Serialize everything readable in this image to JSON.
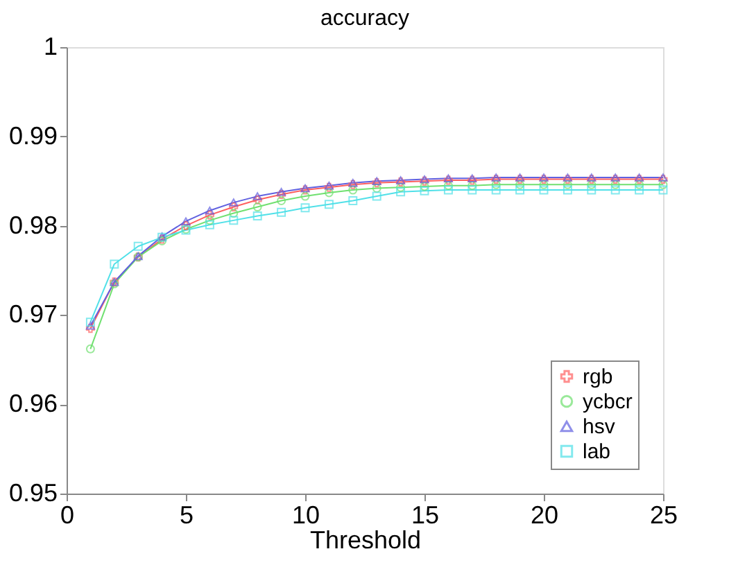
{
  "chart_data": {
    "type": "line",
    "title": "accuracy",
    "xlabel": "Threshold",
    "x": [
      1,
      2,
      3,
      4,
      5,
      6,
      7,
      8,
      9,
      10,
      11,
      12,
      13,
      14,
      15,
      16,
      17,
      18,
      19,
      20,
      21,
      22,
      23,
      24,
      25
    ],
    "xlim": [
      0,
      25
    ],
    "xticks": [
      0,
      5,
      10,
      15,
      20,
      25
    ],
    "ylim": [
      0.95,
      1
    ],
    "yticks": [
      0.95,
      0.96,
      0.97,
      0.98,
      0.99,
      1
    ],
    "grid": false,
    "legend": "bottom right",
    "line_style": "solid",
    "series": [
      {
        "name": "rgb",
        "color": "#ff6060",
        "marker": "cross",
        "values": [
          0.9685,
          0.9737,
          0.9765,
          0.9785,
          0.98,
          0.9812,
          0.9821,
          0.9829,
          0.9835,
          0.984,
          0.9843,
          0.9846,
          0.9848,
          0.9849,
          0.985,
          0.9851,
          0.9851,
          0.9852,
          0.9852,
          0.9852,
          0.9852,
          0.9852,
          0.9852,
          0.9852,
          0.9852
        ]
      },
      {
        "name": "ycbcr",
        "color": "#70e070",
        "marker": "circle",
        "values": [
          0.9662,
          0.9735,
          0.9765,
          0.9783,
          0.9796,
          0.9806,
          0.9814,
          0.9821,
          0.9828,
          0.9833,
          0.9837,
          0.984,
          0.9842,
          0.9843,
          0.9844,
          0.9845,
          0.9845,
          0.9846,
          0.9846,
          0.9846,
          0.9846,
          0.9846,
          0.9846,
          0.9846,
          0.9846
        ]
      },
      {
        "name": "hsv",
        "color": "#6060e0",
        "marker": "triangle",
        "values": [
          0.9688,
          0.9737,
          0.9766,
          0.9788,
          0.9805,
          0.9817,
          0.9826,
          0.9833,
          0.9838,
          0.9842,
          0.9845,
          0.9848,
          0.985,
          0.9851,
          0.9852,
          0.9853,
          0.9853,
          0.9854,
          0.9854,
          0.9854,
          0.9854,
          0.9854,
          0.9854,
          0.9854,
          0.9854
        ]
      },
      {
        "name": "lab",
        "color": "#50e0e8",
        "marker": "square",
        "values": [
          0.9692,
          0.9757,
          0.9777,
          0.9787,
          0.9795,
          0.9801,
          0.9806,
          0.9811,
          0.9815,
          0.982,
          0.9824,
          0.9828,
          0.9833,
          0.9838,
          0.9839,
          0.984,
          0.984,
          0.984,
          0.984,
          0.984,
          0.984,
          0.984,
          0.984,
          0.984,
          0.984
        ]
      }
    ]
  }
}
